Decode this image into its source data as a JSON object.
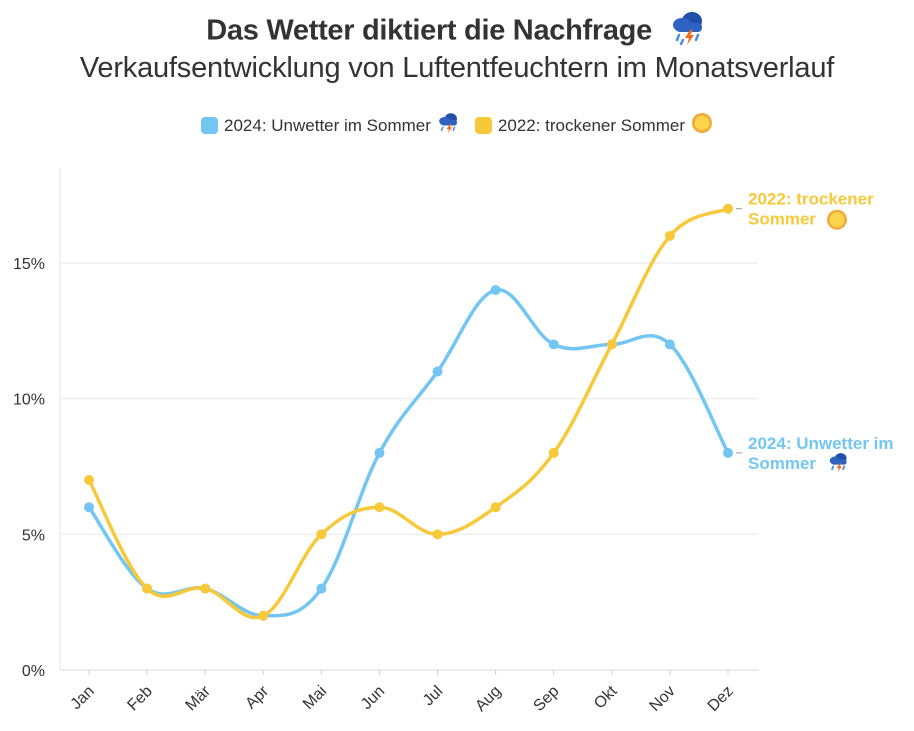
{
  "header": {
    "title": "Das Wetter diktiert die Nachfrage",
    "title_icon": "thunderstorm-cloud-icon",
    "subtitle": "Verkaufsentwicklung von Luftentfeuchtern im Monatsverlauf"
  },
  "legend": {
    "placement": "top",
    "items": [
      {
        "label": "2024: Unwetter im Sommer",
        "color": "#74c6f2",
        "icon": "thunderstorm-cloud-icon"
      },
      {
        "label": "2022: trockener Sommer",
        "color": "#f7c93a",
        "icon": "sun-icon"
      }
    ]
  },
  "chart_data": {
    "type": "line",
    "title": "Das Wetter diktiert die Nachfrage",
    "subtitle": "Verkaufsentwicklung von Luftentfeuchtern im Monatsverlauf",
    "xlabel": "",
    "ylabel": "",
    "categories": [
      "Jan",
      "Feb",
      "Mär",
      "Apr",
      "Mai",
      "Jun",
      "Jul",
      "Aug",
      "Sep",
      "Okt",
      "Nov",
      "Dez"
    ],
    "y_ticks": [
      "0%",
      "5%",
      "10%",
      "15%"
    ],
    "y_tick_values": [
      0,
      5,
      10,
      15
    ],
    "ylim": [
      0,
      18.5
    ],
    "grid": "horizontal",
    "legend_position": "top",
    "series": [
      {
        "name": "2024: Unwetter im Sommer",
        "end_label_line1": "2024: Unwetter im",
        "end_label_line2": "Sommer",
        "color": "#74c6f2",
        "icon": "thunderstorm-cloud-icon",
        "values": [
          6,
          3,
          3,
          2,
          3,
          8,
          11,
          14,
          12,
          12,
          12,
          8
        ]
      },
      {
        "name": "2022: trockener Sommer",
        "end_label_line1": "2022: trockener",
        "end_label_line2": "Sommer",
        "color": "#f7c93a",
        "icon": "sun-icon",
        "values": [
          7,
          3,
          3,
          2,
          5,
          6,
          5,
          6,
          8,
          12,
          16,
          17
        ]
      }
    ]
  }
}
